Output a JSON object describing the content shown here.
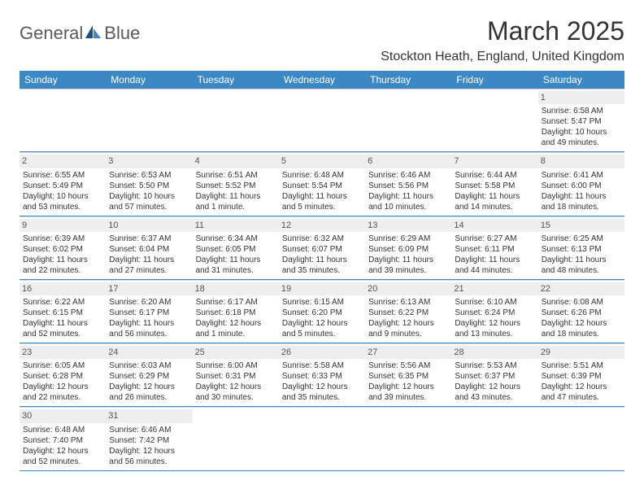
{
  "logo": {
    "part1": "General",
    "part2": "Blue"
  },
  "title": "March 2025",
  "location": "Stockton Heath, England, United Kingdom",
  "colors": {
    "header_bg": "#3b88c5",
    "header_text": "#ffffff",
    "daynum_bg": "#eeeeee",
    "week_divider": "#3b88c5",
    "cell_divider": "#d7d7d7",
    "logo_gray": "#5a5a5a",
    "logo_blue": "#2b7bbf"
  },
  "day_names": [
    "Sunday",
    "Monday",
    "Tuesday",
    "Wednesday",
    "Thursday",
    "Friday",
    "Saturday"
  ],
  "weeks": [
    [
      null,
      null,
      null,
      null,
      null,
      null,
      {
        "n": "1",
        "sr": "Sunrise: 6:58 AM",
        "ss": "Sunset: 5:47 PM",
        "d1": "Daylight: 10 hours",
        "d2": "and 49 minutes."
      }
    ],
    [
      {
        "n": "2",
        "sr": "Sunrise: 6:55 AM",
        "ss": "Sunset: 5:49 PM",
        "d1": "Daylight: 10 hours",
        "d2": "and 53 minutes."
      },
      {
        "n": "3",
        "sr": "Sunrise: 6:53 AM",
        "ss": "Sunset: 5:50 PM",
        "d1": "Daylight: 10 hours",
        "d2": "and 57 minutes."
      },
      {
        "n": "4",
        "sr": "Sunrise: 6:51 AM",
        "ss": "Sunset: 5:52 PM",
        "d1": "Daylight: 11 hours",
        "d2": "and 1 minute."
      },
      {
        "n": "5",
        "sr": "Sunrise: 6:48 AM",
        "ss": "Sunset: 5:54 PM",
        "d1": "Daylight: 11 hours",
        "d2": "and 5 minutes."
      },
      {
        "n": "6",
        "sr": "Sunrise: 6:46 AM",
        "ss": "Sunset: 5:56 PM",
        "d1": "Daylight: 11 hours",
        "d2": "and 10 minutes."
      },
      {
        "n": "7",
        "sr": "Sunrise: 6:44 AM",
        "ss": "Sunset: 5:58 PM",
        "d1": "Daylight: 11 hours",
        "d2": "and 14 minutes."
      },
      {
        "n": "8",
        "sr": "Sunrise: 6:41 AM",
        "ss": "Sunset: 6:00 PM",
        "d1": "Daylight: 11 hours",
        "d2": "and 18 minutes."
      }
    ],
    [
      {
        "n": "9",
        "sr": "Sunrise: 6:39 AM",
        "ss": "Sunset: 6:02 PM",
        "d1": "Daylight: 11 hours",
        "d2": "and 22 minutes."
      },
      {
        "n": "10",
        "sr": "Sunrise: 6:37 AM",
        "ss": "Sunset: 6:04 PM",
        "d1": "Daylight: 11 hours",
        "d2": "and 27 minutes."
      },
      {
        "n": "11",
        "sr": "Sunrise: 6:34 AM",
        "ss": "Sunset: 6:05 PM",
        "d1": "Daylight: 11 hours",
        "d2": "and 31 minutes."
      },
      {
        "n": "12",
        "sr": "Sunrise: 6:32 AM",
        "ss": "Sunset: 6:07 PM",
        "d1": "Daylight: 11 hours",
        "d2": "and 35 minutes."
      },
      {
        "n": "13",
        "sr": "Sunrise: 6:29 AM",
        "ss": "Sunset: 6:09 PM",
        "d1": "Daylight: 11 hours",
        "d2": "and 39 minutes."
      },
      {
        "n": "14",
        "sr": "Sunrise: 6:27 AM",
        "ss": "Sunset: 6:11 PM",
        "d1": "Daylight: 11 hours",
        "d2": "and 44 minutes."
      },
      {
        "n": "15",
        "sr": "Sunrise: 6:25 AM",
        "ss": "Sunset: 6:13 PM",
        "d1": "Daylight: 11 hours",
        "d2": "and 48 minutes."
      }
    ],
    [
      {
        "n": "16",
        "sr": "Sunrise: 6:22 AM",
        "ss": "Sunset: 6:15 PM",
        "d1": "Daylight: 11 hours",
        "d2": "and 52 minutes."
      },
      {
        "n": "17",
        "sr": "Sunrise: 6:20 AM",
        "ss": "Sunset: 6:17 PM",
        "d1": "Daylight: 11 hours",
        "d2": "and 56 minutes."
      },
      {
        "n": "18",
        "sr": "Sunrise: 6:17 AM",
        "ss": "Sunset: 6:18 PM",
        "d1": "Daylight: 12 hours",
        "d2": "and 1 minute."
      },
      {
        "n": "19",
        "sr": "Sunrise: 6:15 AM",
        "ss": "Sunset: 6:20 PM",
        "d1": "Daylight: 12 hours",
        "d2": "and 5 minutes."
      },
      {
        "n": "20",
        "sr": "Sunrise: 6:13 AM",
        "ss": "Sunset: 6:22 PM",
        "d1": "Daylight: 12 hours",
        "d2": "and 9 minutes."
      },
      {
        "n": "21",
        "sr": "Sunrise: 6:10 AM",
        "ss": "Sunset: 6:24 PM",
        "d1": "Daylight: 12 hours",
        "d2": "and 13 minutes."
      },
      {
        "n": "22",
        "sr": "Sunrise: 6:08 AM",
        "ss": "Sunset: 6:26 PM",
        "d1": "Daylight: 12 hours",
        "d2": "and 18 minutes."
      }
    ],
    [
      {
        "n": "23",
        "sr": "Sunrise: 6:05 AM",
        "ss": "Sunset: 6:28 PM",
        "d1": "Daylight: 12 hours",
        "d2": "and 22 minutes."
      },
      {
        "n": "24",
        "sr": "Sunrise: 6:03 AM",
        "ss": "Sunset: 6:29 PM",
        "d1": "Daylight: 12 hours",
        "d2": "and 26 minutes."
      },
      {
        "n": "25",
        "sr": "Sunrise: 6:00 AM",
        "ss": "Sunset: 6:31 PM",
        "d1": "Daylight: 12 hours",
        "d2": "and 30 minutes."
      },
      {
        "n": "26",
        "sr": "Sunrise: 5:58 AM",
        "ss": "Sunset: 6:33 PM",
        "d1": "Daylight: 12 hours",
        "d2": "and 35 minutes."
      },
      {
        "n": "27",
        "sr": "Sunrise: 5:56 AM",
        "ss": "Sunset: 6:35 PM",
        "d1": "Daylight: 12 hours",
        "d2": "and 39 minutes."
      },
      {
        "n": "28",
        "sr": "Sunrise: 5:53 AM",
        "ss": "Sunset: 6:37 PM",
        "d1": "Daylight: 12 hours",
        "d2": "and 43 minutes."
      },
      {
        "n": "29",
        "sr": "Sunrise: 5:51 AM",
        "ss": "Sunset: 6:39 PM",
        "d1": "Daylight: 12 hours",
        "d2": "and 47 minutes."
      }
    ],
    [
      {
        "n": "30",
        "sr": "Sunrise: 6:48 AM",
        "ss": "Sunset: 7:40 PM",
        "d1": "Daylight: 12 hours",
        "d2": "and 52 minutes."
      },
      {
        "n": "31",
        "sr": "Sunrise: 6:46 AM",
        "ss": "Sunset: 7:42 PM",
        "d1": "Daylight: 12 hours",
        "d2": "and 56 minutes."
      },
      null,
      null,
      null,
      null,
      null
    ]
  ]
}
